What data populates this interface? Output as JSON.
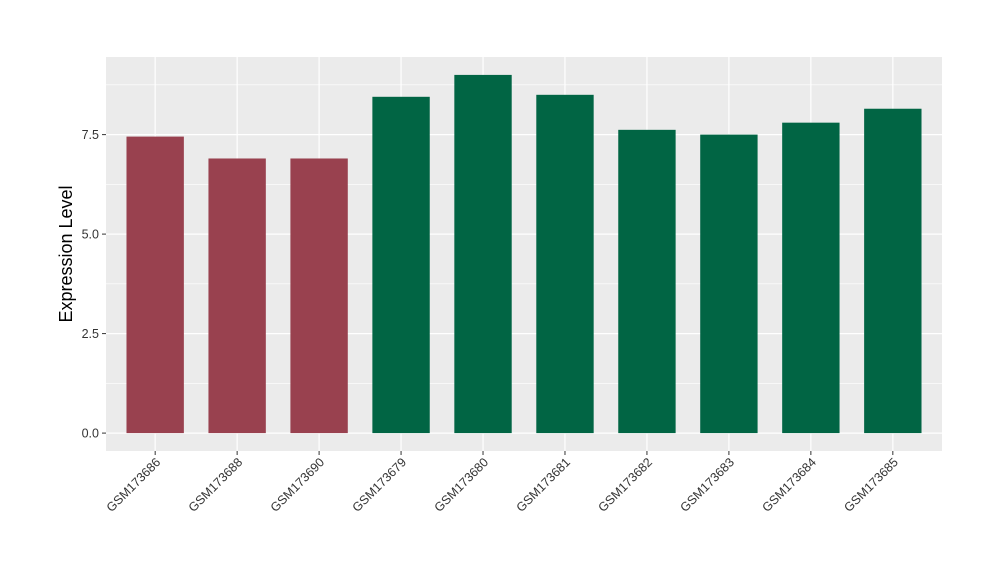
{
  "chart_data": {
    "type": "bar",
    "title": "",
    "xlabel": "",
    "ylabel": "Expression Level",
    "categories": [
      "GSM173686",
      "GSM173688",
      "GSM173690",
      "GSM173679",
      "GSM173680",
      "GSM173681",
      "GSM173682",
      "GSM173683",
      "GSM173684",
      "GSM173685"
    ],
    "values": [
      7.45,
      6.9,
      6.9,
      8.45,
      9.0,
      8.5,
      7.62,
      7.5,
      7.8,
      8.15
    ],
    "bar_colors": [
      "#99414f",
      "#99414f",
      "#99414f",
      "#016544",
      "#016544",
      "#016544",
      "#016544",
      "#016544",
      "#016544",
      "#016544"
    ],
    "ylim": [
      -0.45,
      9.45
    ],
    "yticks": [
      0.0,
      2.5,
      5.0,
      7.5
    ],
    "ytick_labels": [
      "0.0",
      "2.5",
      "5.0",
      "7.5"
    ],
    "grid": true,
    "legend": "none",
    "panel_background": "#ebebeb",
    "gridline_color": "#ffffff"
  }
}
